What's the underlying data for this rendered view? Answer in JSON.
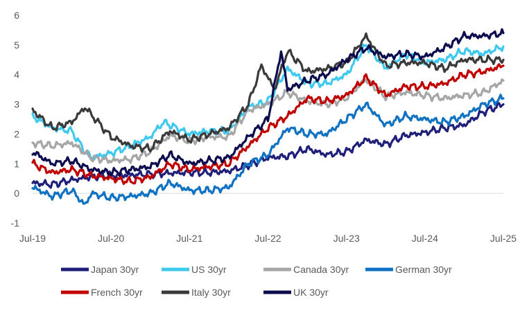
{
  "chart_data": {
    "type": "line",
    "title": "",
    "xlabel": "",
    "ylabel": "",
    "ylim": [
      -1,
      6
    ],
    "xlim": [
      "2019-07",
      "2025-07"
    ],
    "y_ticks": [
      "6",
      "5",
      "4",
      "3",
      "2",
      "1",
      "0",
      "-1"
    ],
    "x_ticks": [
      "Jul-19",
      "Jul-20",
      "Jul-21",
      "Jul-22",
      "Jul-23",
      "Jul-24",
      "Jul-25"
    ],
    "grid": false,
    "legend_position": "bottom",
    "series": [
      {
        "name": "Japan 30yr",
        "color": "#1f1f7a",
        "x": [
          "2019-07",
          "2019-10",
          "2020-01",
          "2020-04",
          "2020-07",
          "2020-10",
          "2021-01",
          "2021-04",
          "2021-07",
          "2021-10",
          "2022-01",
          "2022-04",
          "2022-07",
          "2022-10",
          "2023-01",
          "2023-04",
          "2023-07",
          "2023-10",
          "2024-01",
          "2024-04",
          "2024-07",
          "2024-10",
          "2025-01",
          "2025-04",
          "2025-07"
        ],
        "values": [
          0.35,
          0.3,
          0.45,
          0.55,
          0.6,
          0.62,
          0.65,
          0.68,
          0.7,
          0.7,
          0.75,
          0.95,
          1.2,
          1.25,
          1.5,
          1.3,
          1.4,
          1.8,
          1.65,
          1.95,
          2.05,
          2.2,
          2.3,
          2.75,
          3.0
        ]
      },
      {
        "name": "US 30yr",
        "color": "#3fc9ee",
        "x": [
          "2019-07",
          "2019-10",
          "2020-01",
          "2020-03",
          "2020-04",
          "2020-07",
          "2020-10",
          "2021-01",
          "2021-03",
          "2021-07",
          "2021-10",
          "2022-01",
          "2022-04",
          "2022-07",
          "2022-10",
          "2023-01",
          "2023-04",
          "2023-07",
          "2023-10",
          "2024-01",
          "2024-04",
          "2024-07",
          "2024-10",
          "2025-01",
          "2025-04",
          "2025-07"
        ],
        "values": [
          2.6,
          2.2,
          2.1,
          1.4,
          1.2,
          1.35,
          1.6,
          1.9,
          2.4,
          2.0,
          2.1,
          2.1,
          2.9,
          3.1,
          4.2,
          3.7,
          3.7,
          4.0,
          5.0,
          4.2,
          4.7,
          4.4,
          4.5,
          4.8,
          4.7,
          4.95
        ]
      },
      {
        "name": "Canada 30yr",
        "color": "#a6a6a6",
        "x": [
          "2019-07",
          "2019-10",
          "2020-01",
          "2020-04",
          "2020-07",
          "2020-10",
          "2021-01",
          "2021-04",
          "2021-07",
          "2021-10",
          "2022-01",
          "2022-04",
          "2022-07",
          "2022-10",
          "2023-01",
          "2023-04",
          "2023-07",
          "2023-10",
          "2024-01",
          "2024-04",
          "2024-07",
          "2024-10",
          "2025-01",
          "2025-04",
          "2025-07"
        ],
        "values": [
          1.7,
          1.6,
          1.7,
          1.2,
          1.1,
          1.15,
          1.4,
          1.95,
          1.75,
          1.9,
          1.9,
          2.8,
          3.0,
          3.4,
          3.1,
          3.0,
          3.2,
          3.85,
          3.25,
          3.4,
          3.3,
          3.2,
          3.3,
          3.4,
          3.8
        ]
      },
      {
        "name": "German 30yr",
        "color": "#0f72c2",
        "x": [
          "2019-07",
          "2019-10",
          "2020-01",
          "2020-03",
          "2020-04",
          "2020-07",
          "2020-10",
          "2021-01",
          "2021-04",
          "2021-07",
          "2021-10",
          "2022-01",
          "2022-04",
          "2022-07",
          "2022-10",
          "2023-01",
          "2023-04",
          "2023-07",
          "2023-10",
          "2024-01",
          "2024-04",
          "2024-07",
          "2024-10",
          "2025-01",
          "2025-04",
          "2025-07"
        ],
        "values": [
          0.2,
          -0.1,
          0.1,
          -0.4,
          0.0,
          -0.15,
          -0.1,
          0.0,
          0.35,
          0.1,
          0.1,
          0.2,
          1.0,
          1.3,
          2.2,
          2.0,
          2.0,
          2.5,
          3.0,
          2.3,
          2.6,
          2.5,
          2.4,
          2.6,
          3.0,
          3.2
        ]
      },
      {
        "name": "French 30yr",
        "color": "#c00000",
        "x": [
          "2019-07",
          "2019-10",
          "2020-01",
          "2020-04",
          "2020-07",
          "2020-10",
          "2021-01",
          "2021-04",
          "2021-07",
          "2021-10",
          "2022-01",
          "2022-04",
          "2022-07",
          "2022-10",
          "2023-01",
          "2023-04",
          "2023-07",
          "2023-10",
          "2024-01",
          "2024-04",
          "2024-07",
          "2024-10",
          "2025-01",
          "2025-04",
          "2025-07"
        ],
        "values": [
          1.0,
          0.7,
          0.8,
          0.6,
          0.5,
          0.4,
          0.55,
          1.0,
          0.8,
          0.9,
          1.0,
          1.6,
          2.2,
          2.6,
          3.2,
          3.1,
          3.3,
          3.9,
          3.3,
          3.6,
          3.6,
          3.7,
          4.0,
          4.1,
          4.3
        ]
      },
      {
        "name": "Italy 30yr",
        "color": "#3a3a3a",
        "x": [
          "2019-07",
          "2019-10",
          "2020-01",
          "2020-03",
          "2020-05",
          "2020-07",
          "2020-10",
          "2021-01",
          "2021-04",
          "2021-07",
          "2021-10",
          "2022-01",
          "2022-04",
          "2022-06",
          "2022-08",
          "2022-10",
          "2023-01",
          "2023-04",
          "2023-07",
          "2023-10",
          "2024-01",
          "2024-04",
          "2024-07",
          "2024-10",
          "2025-01",
          "2025-04",
          "2025-07"
        ],
        "values": [
          2.8,
          2.2,
          2.4,
          2.9,
          2.4,
          1.9,
          1.6,
          1.5,
          2.1,
          1.8,
          2.0,
          2.2,
          3.0,
          4.3,
          3.5,
          4.8,
          4.1,
          4.2,
          4.4,
          5.3,
          4.3,
          4.4,
          4.4,
          4.2,
          4.5,
          4.5,
          4.5
        ]
      },
      {
        "name": "UK 30yr",
        "color": "#0b0b4d",
        "x": [
          "2019-07",
          "2019-10",
          "2020-01",
          "2020-04",
          "2020-07",
          "2020-10",
          "2021-01",
          "2021-04",
          "2021-07",
          "2021-10",
          "2022-01",
          "2022-04",
          "2022-07",
          "2022-09",
          "2022-10",
          "2023-01",
          "2023-04",
          "2023-07",
          "2023-10",
          "2024-01",
          "2024-04",
          "2024-07",
          "2024-10",
          "2025-01",
          "2025-04",
          "2025-07"
        ],
        "values": [
          1.4,
          1.0,
          1.1,
          0.8,
          0.7,
          0.8,
          0.9,
          1.3,
          1.0,
          1.1,
          1.2,
          1.9,
          2.5,
          4.8,
          3.5,
          3.8,
          4.0,
          4.5,
          4.9,
          4.6,
          4.7,
          4.6,
          4.9,
          5.3,
          5.3,
          5.4
        ]
      }
    ]
  }
}
